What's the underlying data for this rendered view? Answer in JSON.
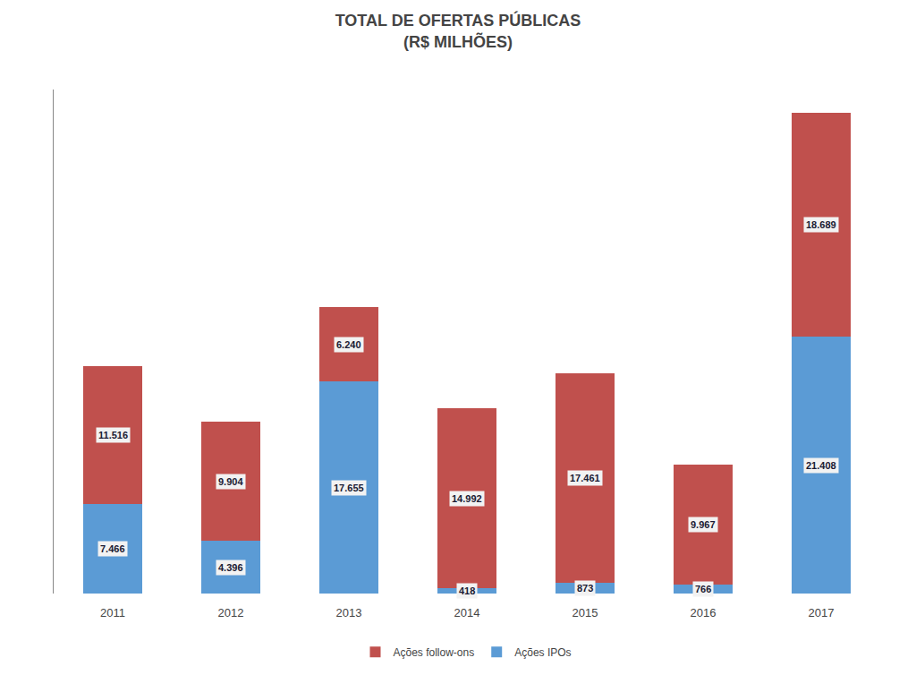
{
  "chart_data": {
    "type": "bar",
    "title": "TOTAL DE OFERTAS PÚBLICAS\n(R$ MILHÕES)",
    "categories": [
      "2011",
      "2012",
      "2013",
      "2014",
      "2015",
      "2016",
      "2017"
    ],
    "series": [
      {
        "name": "Ações IPOs",
        "color": "#5B9BD5",
        "values": [
          7466,
          4396,
          17655,
          418,
          873,
          766,
          21408
        ],
        "value_labels": [
          "7.466",
          "4.396",
          "17.655",
          "418",
          "873",
          "766",
          "21.408"
        ]
      },
      {
        "name": "Ações follow-ons",
        "color": "#C0504D",
        "values": [
          11516,
          9904,
          6240,
          14992,
          17461,
          9967,
          18689
        ],
        "value_labels": [
          "11.516",
          "9.904",
          "6.240",
          "14.992",
          "17.461",
          "9.967",
          "18.689"
        ]
      }
    ],
    "stacked": true,
    "data_labels": true,
    "ylim": [
      0,
      42000
    ],
    "tick_labels": "x",
    "legend": "bottom"
  }
}
